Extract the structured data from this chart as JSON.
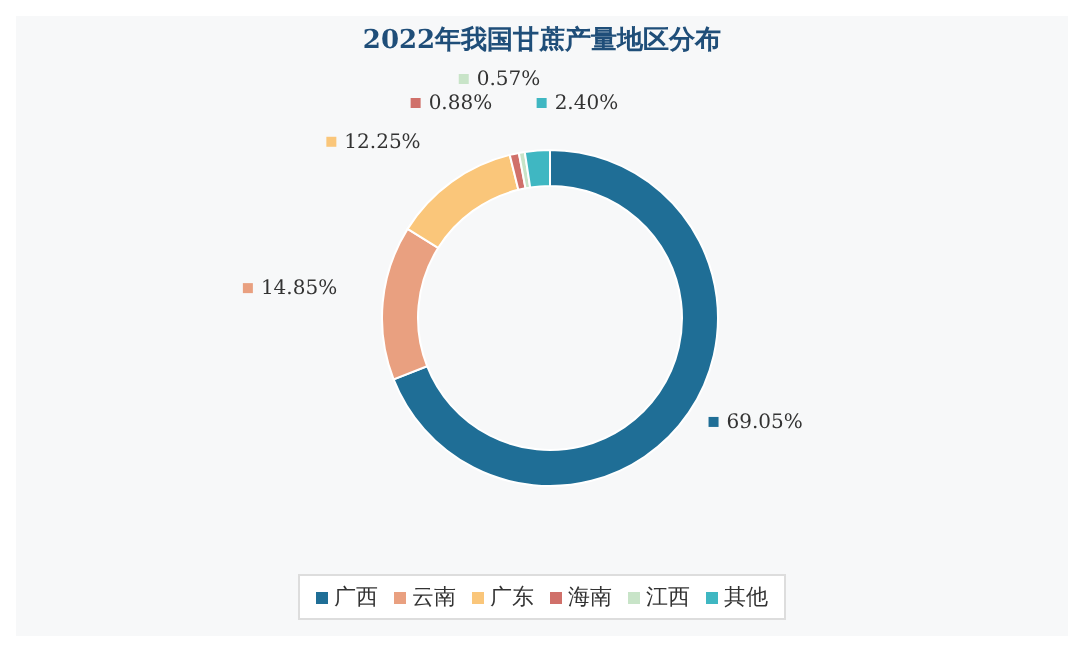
{
  "chart_data": {
    "type": "donut",
    "title": "2022年我国甘蔗产量地区分布",
    "categories": [
      "广西",
      "云南",
      "广东",
      "海南",
      "江西",
      "其他"
    ],
    "values": [
      69.05,
      14.85,
      12.25,
      0.88,
      0.57,
      2.4
    ],
    "value_labels": [
      "69.05%",
      "14.85%",
      "12.25%",
      "0.88%",
      "0.57%",
      "2.40%"
    ],
    "colors": [
      "#1f6e96",
      "#e9a080",
      "#fac67a",
      "#d0706a",
      "#c8e4c8",
      "#3fb7c2"
    ],
    "legend": "bottom"
  }
}
